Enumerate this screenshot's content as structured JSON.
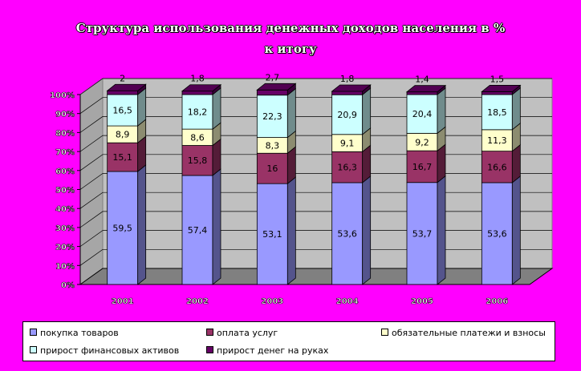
{
  "chart_data": {
    "type": "bar",
    "stacked": "percent",
    "title_line1": "Структура использования денежных доходов населения в %",
    "title_line2": "к итогу",
    "categories": [
      "2001",
      "2002",
      "2003",
      "2004",
      "2005",
      "2006"
    ],
    "yticks": [
      "0%",
      "10%",
      "20%",
      "30%",
      "40%",
      "50%",
      "60%",
      "70%",
      "80%",
      "90%",
      "100%"
    ],
    "ylim": [
      0,
      100
    ],
    "series": [
      {
        "name": "покупка товаров",
        "color": "#9999ff",
        "values": [
          59.5,
          57.4,
          53.1,
          53.6,
          53.7,
          53.6
        ],
        "labels": [
          "59,5",
          "57,4",
          "53,1",
          "53,6",
          "53,7",
          "53,6"
        ]
      },
      {
        "name": "оплата услуг",
        "color": "#993366",
        "values": [
          15.1,
          15.8,
          16,
          16.3,
          16.7,
          16.6
        ],
        "labels": [
          "15,1",
          "15,8",
          "16",
          "16,3",
          "16,7",
          "16,6"
        ]
      },
      {
        "name": "обязательные платежи и взносы",
        "color": "#ffffcc",
        "values": [
          8.9,
          8.6,
          8.3,
          9.1,
          9.2,
          11.3
        ],
        "labels": [
          "8,9",
          "8,6",
          "8,3",
          "9,1",
          "9,2",
          "11,3"
        ]
      },
      {
        "name": "прирост финансовых активов",
        "color": "#ccffff",
        "values": [
          16.5,
          18.2,
          22.3,
          20.9,
          20.4,
          18.5
        ],
        "labels": [
          "16,5",
          "18,2",
          "22,3",
          "20,9",
          "20,4",
          "18,5"
        ]
      },
      {
        "name": "прирост денег на руках",
        "color": "#660066",
        "values": [
          2,
          1.8,
          2.7,
          1.8,
          1.4,
          1.5
        ],
        "labels": [
          "2",
          "1,8",
          "2,7",
          "1,8",
          "1,4",
          "1,5"
        ]
      }
    ],
    "grid": true,
    "legend_position": "bottom"
  }
}
